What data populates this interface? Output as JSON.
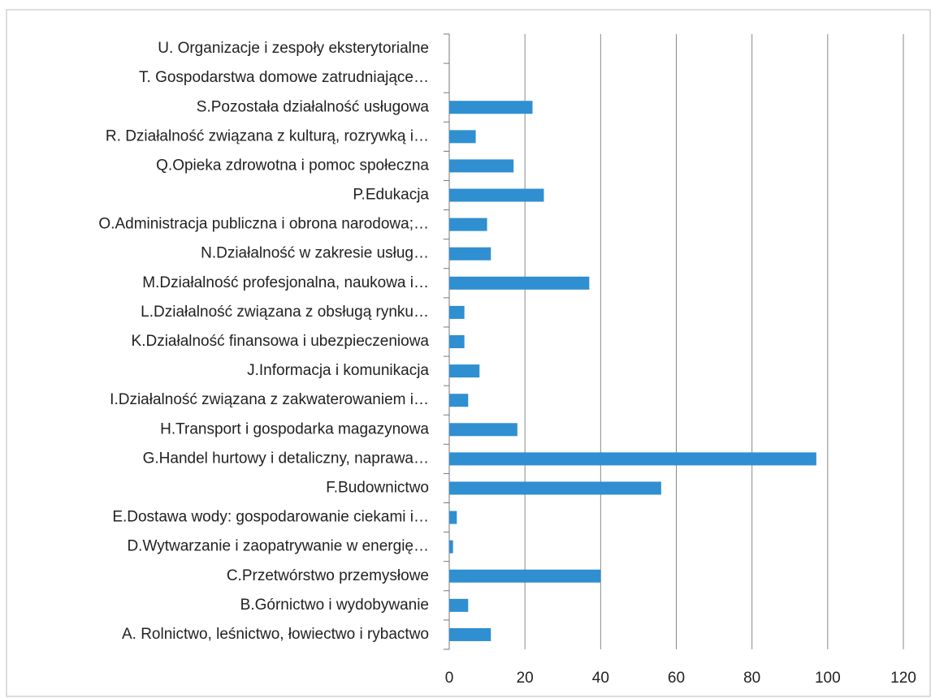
{
  "chart_data": {
    "type": "bar",
    "orientation": "horizontal",
    "categories": [
      "U. Organizacje i zespoły eksterytorialne",
      "T. Gospodarstwa domowe zatrudniające…",
      "S.Pozostała działalność usługowa",
      "R. Działalność związana z kulturą, rozrywką i…",
      "Q.Opieka zdrowotna i pomoc społeczna",
      "P.Edukacja",
      "O.Administracja publiczna i obrona narodowa;…",
      "N.Działalność w zakresie usług…",
      "M.Działalność profesjonalna, naukowa i…",
      "L.Działalność związana z obsługą rynku…",
      "K.Działalność finansowa i ubezpieczeniowa",
      "J.Informacja i komunikacja",
      "I.Działalność związana z zakwaterowaniem i…",
      "H.Transport i gospodarka magazynowa",
      "G.Handel hurtowy i detaliczny, naprawa…",
      "F.Budownictwo",
      "E.Dostawa wody: gospodarowanie ciekami i…",
      "D.Wytwarzanie i zaopatrywanie w energię…",
      "C.Przetwórstwo przemysłowe",
      "B.Górnictwo i wydobywanie",
      "A. Rolnictwo, leśnictwo, łowiectwo i rybactwo"
    ],
    "values": [
      0,
      0,
      22,
      7,
      17,
      25,
      10,
      11,
      37,
      4,
      4,
      8,
      5,
      18,
      97,
      56,
      2,
      1,
      40,
      5,
      11
    ],
    "color": "#2f8fd1",
    "xlim": [
      0,
      120
    ],
    "xticks": [
      0,
      20,
      40,
      60,
      80,
      100,
      120
    ],
    "grid": true
  }
}
